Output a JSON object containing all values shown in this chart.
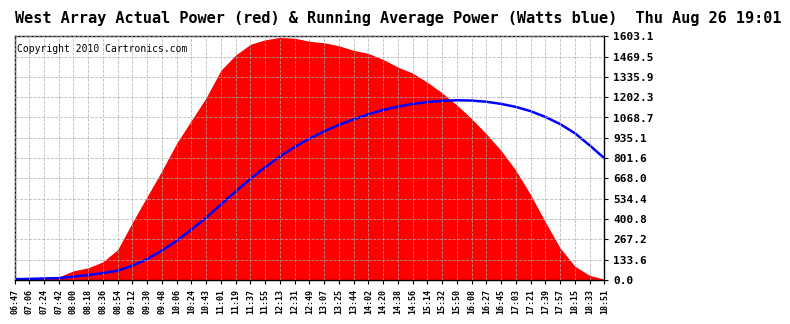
{
  "title": "West Array Actual Power (red) & Running Average Power (Watts blue)  Thu Aug 26 19:01",
  "copyright": "Copyright 2010 Cartronics.com",
  "yticks": [
    0.0,
    133.6,
    267.2,
    400.8,
    534.4,
    668.0,
    801.6,
    935.1,
    1068.7,
    1202.3,
    1335.9,
    1469.5,
    1603.1
  ],
  "ymax": 1603.1,
  "ymin": 0.0,
  "fill_color": "red",
  "line_color": "blue",
  "background_color": "#ffffff",
  "grid_color": "#aaaaaa",
  "title_fontsize": 11,
  "copyright_fontsize": 7,
  "xtick_labels": [
    "06:47",
    "07:06",
    "07:24",
    "07:42",
    "08:00",
    "08:18",
    "08:36",
    "08:54",
    "09:12",
    "09:30",
    "09:48",
    "10:06",
    "10:24",
    "10:43",
    "11:01",
    "11:19",
    "11:37",
    "11:55",
    "12:13",
    "12:31",
    "12:49",
    "13:07",
    "13:25",
    "13:44",
    "14:02",
    "14:20",
    "14:38",
    "14:56",
    "15:14",
    "15:32",
    "15:50",
    "16:08",
    "16:27",
    "16:45",
    "17:03",
    "17:21",
    "17:39",
    "17:57",
    "18:15",
    "18:33",
    "18:51"
  ],
  "actual_power": [
    5,
    10,
    15,
    20,
    60,
    80,
    120,
    200,
    380,
    550,
    720,
    900,
    1050,
    1200,
    1380,
    1480,
    1550,
    1580,
    1595,
    1590,
    1570,
    1560,
    1540,
    1510,
    1490,
    1450,
    1400,
    1360,
    1300,
    1230,
    1150,
    1060,
    960,
    850,
    720,
    560,
    380,
    210,
    90,
    30,
    5
  ],
  "running_avg": [
    5,
    7,
    10,
    12,
    22,
    32,
    46,
    61,
    95,
    138,
    193,
    258,
    332,
    410,
    497,
    583,
    665,
    742,
    812,
    875,
    930,
    978,
    1020,
    1057,
    1090,
    1118,
    1140,
    1158,
    1170,
    1178,
    1182,
    1180,
    1172,
    1158,
    1138,
    1110,
    1072,
    1025,
    965,
    885,
    800
  ]
}
